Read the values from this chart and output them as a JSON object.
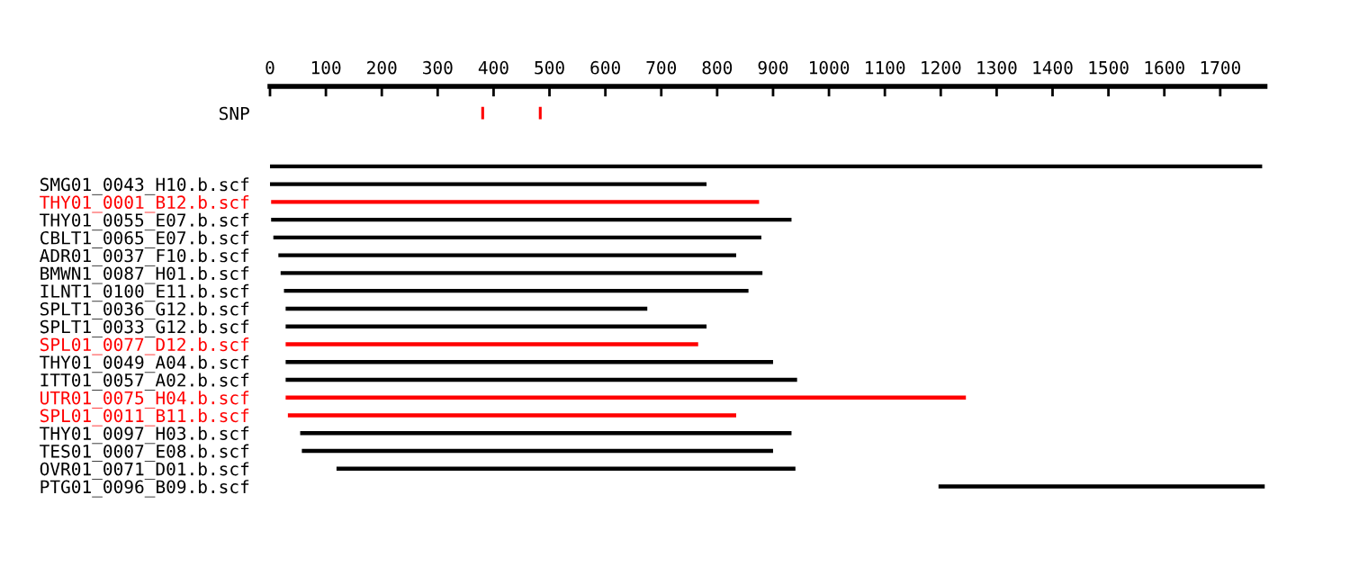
{
  "chart_data": {
    "type": "bar",
    "orientation": "horizontal",
    "categories": [
      "SNP",
      null,
      null,
      null,
      "SMG01_0043_H10.b.scf",
      "THY01_0001_B12.b.scf",
      "THY01_0055_E07.b.scf",
      "CBLT1_0065_E07.b.scf",
      "ADR01_0037_F10.b.scf",
      "BMWN1_0087_H01.b.scf",
      "ILNT1_0100_E11.b.scf",
      "SPLT1_0036_G12.b.scf",
      "SPLT1_0033_G12.b.scf",
      "SPL01_0077_D12.b.scf",
      "THY01_0049_A04.b.scf",
      "ITT01_0057_A02.b.scf",
      "UTR01_0075_H04.b.scf",
      "SPL01_0011_B11.b.scf",
      "THY01_0097_H03.b.scf",
      "TES01_0007_E08.b.scf",
      "OVR01_0071_D01.b.scf",
      "PTG01_0096_B09.b.scf"
    ],
    "series": [
      {
        "base": [
          null,
          null,
          null,
          0,
          0,
          2,
          2,
          6,
          15,
          19,
          25,
          28,
          28,
          28,
          28,
          28,
          28,
          32,
          54,
          57,
          119,
          1196
        ],
        "values": [
          null,
          null,
          null,
          1775,
          781,
          873,
          931,
          873,
          819,
          862,
          831,
          647,
          753,
          738,
          872,
          915,
          1217,
          802,
          879,
          843,
          821,
          584
        ],
        "colors": [
          null,
          null,
          null,
          "#000000",
          "#000000",
          "#ff0000",
          "#000000",
          "#000000",
          "#000000",
          "#000000",
          "#000000",
          "#000000",
          "#000000",
          "#ff0000",
          "#000000",
          "#000000",
          "#ff0000",
          "#ff0000",
          "#000000",
          "#000000",
          "#000000",
          "#000000"
        ]
      },
      {
        "base": [
          378,
          null,
          null,
          null,
          null,
          null,
          null,
          null,
          null,
          null,
          null,
          null,
          null,
          null,
          null,
          null,
          null,
          null,
          null,
          null,
          null,
          null
        ],
        "values": [
          5,
          null,
          null,
          null,
          null,
          null,
          null,
          null,
          null,
          null,
          null,
          null,
          null,
          null,
          null,
          null,
          null,
          null,
          null,
          null,
          null,
          null
        ],
        "color": "#ff0000"
      },
      {
        "base": [
          481,
          null,
          null,
          null,
          null,
          null,
          null,
          null,
          null,
          null,
          null,
          null,
          null,
          null,
          null,
          null,
          null,
          null,
          null,
          null,
          null,
          null
        ],
        "values": [
          5,
          null,
          null,
          null,
          null,
          null,
          null,
          null,
          null,
          null,
          null,
          null,
          null,
          null,
          null,
          null,
          null,
          null,
          null,
          null,
          null,
          null
        ],
        "color": "#ff0000"
      }
    ],
    "xlim": [
      0,
      1780
    ],
    "xticks": [
      0,
      100,
      200,
      300,
      400,
      500,
      600,
      700,
      800,
      900,
      1000,
      1100,
      1200,
      1300,
      1400,
      1500,
      1600,
      1700
    ],
    "grid": false
  }
}
